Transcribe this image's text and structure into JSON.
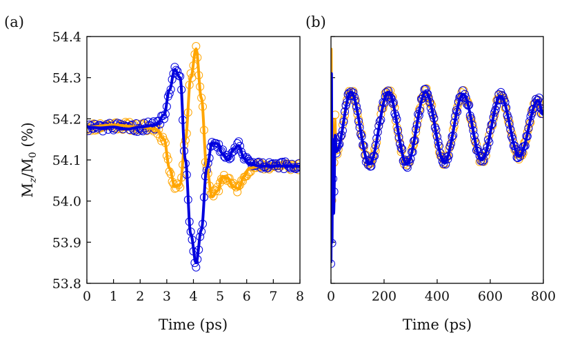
{
  "chart_data": [
    {
      "type": "scatter+line",
      "panel_label": "(a)",
      "xlabel": "Time (ps)",
      "ylabel": "M_z/M_0 (%)",
      "ylabel_parts": {
        "main": "M",
        "sub1": "z",
        "slash": "/M",
        "sub2": "0",
        "tail": " (%)"
      },
      "xlim": [
        0,
        8
      ],
      "ylim": [
        53.8,
        54.4
      ],
      "xticks": [
        0,
        1,
        2,
        3,
        4,
        5,
        6,
        7,
        8
      ],
      "xtick_labels": [
        "0",
        "1",
        "2",
        "3",
        "4",
        "5",
        "6",
        "7",
        "8"
      ],
      "yticks": [
        53.8,
        53.9,
        54.0,
        54.1,
        54.2,
        54.3,
        54.4
      ],
      "ytick_labels": [
        "53.8",
        "53.9",
        "54.0",
        "54.1",
        "54.2",
        "54.3",
        "54.4"
      ],
      "series": [
        {
          "name": "orange",
          "color": "#ffa500",
          "x": [
            0.0,
            1.0,
            2.0,
            2.6,
            2.9,
            3.1,
            3.3,
            3.5,
            3.7,
            3.9,
            4.1,
            4.3,
            4.5,
            4.7,
            4.9,
            5.1,
            5.3,
            5.5,
            5.7,
            5.9,
            6.1,
            6.5,
            7.0,
            8.0
          ],
          "y": [
            54.18,
            54.185,
            54.18,
            54.175,
            54.15,
            54.08,
            54.035,
            54.04,
            54.15,
            54.3,
            54.37,
            54.25,
            54.08,
            54.01,
            54.025,
            54.06,
            54.055,
            54.035,
            54.03,
            54.06,
            54.08,
            54.085,
            54.085,
            54.085
          ]
        },
        {
          "name": "blue",
          "color": "#0000dd",
          "x": [
            0.0,
            0.5,
            1.0,
            1.5,
            2.0,
            2.6,
            2.9,
            3.1,
            3.3,
            3.5,
            3.7,
            3.9,
            4.1,
            4.3,
            4.5,
            4.7,
            4.9,
            5.1,
            5.3,
            5.5,
            5.7,
            5.9,
            6.1,
            6.5,
            7.0,
            8.0
          ],
          "y": [
            54.18,
            54.178,
            54.18,
            54.175,
            54.18,
            54.185,
            54.21,
            54.27,
            54.32,
            54.3,
            54.1,
            53.92,
            53.85,
            53.93,
            54.08,
            54.14,
            54.14,
            54.115,
            54.1,
            54.125,
            54.135,
            54.105,
            54.09,
            54.085,
            54.085,
            54.085
          ]
        }
      ]
    },
    {
      "type": "scatter+line",
      "panel_label": "(b)",
      "xlabel": "Time (ps)",
      "xlim": [
        0,
        800
      ],
      "ylim": [
        53.8,
        54.4
      ],
      "xticks": [
        0,
        200,
        400,
        600,
        800
      ],
      "xtick_labels": [
        "0",
        "200",
        "400",
        "600",
        "800"
      ],
      "yticks": [
        53.8,
        53.9,
        54.0,
        54.1,
        54.2,
        54.3,
        54.4
      ],
      "oscillation": {
        "period_ps": 141,
        "peaks": [
          [
            75,
            54.265
          ],
          [
            216,
            54.265
          ],
          [
            357,
            54.265
          ],
          [
            498,
            54.26
          ],
          [
            639,
            54.255
          ],
          [
            780,
            54.245
          ]
        ],
        "troughs": [
          [
            145,
            54.09
          ],
          [
            286,
            54.09
          ],
          [
            427,
            54.095
          ],
          [
            568,
            54.1
          ],
          [
            709,
            54.11
          ]
        ]
      },
      "series": [
        {
          "name": "orange",
          "color": "#ffa500",
          "spike_x": [
            0,
            2,
            4,
            6,
            10,
            16
          ],
          "spike_y": [
            54.0,
            54.37,
            54.0,
            54.2,
            54.05,
            54.2
          ]
        },
        {
          "name": "blue",
          "color": "#0000dd",
          "spike_x": [
            0,
            2,
            4,
            6,
            10,
            16
          ],
          "spike_y": [
            53.85,
            54.31,
            53.9,
            54.15,
            53.97,
            54.16
          ]
        }
      ]
    }
  ]
}
